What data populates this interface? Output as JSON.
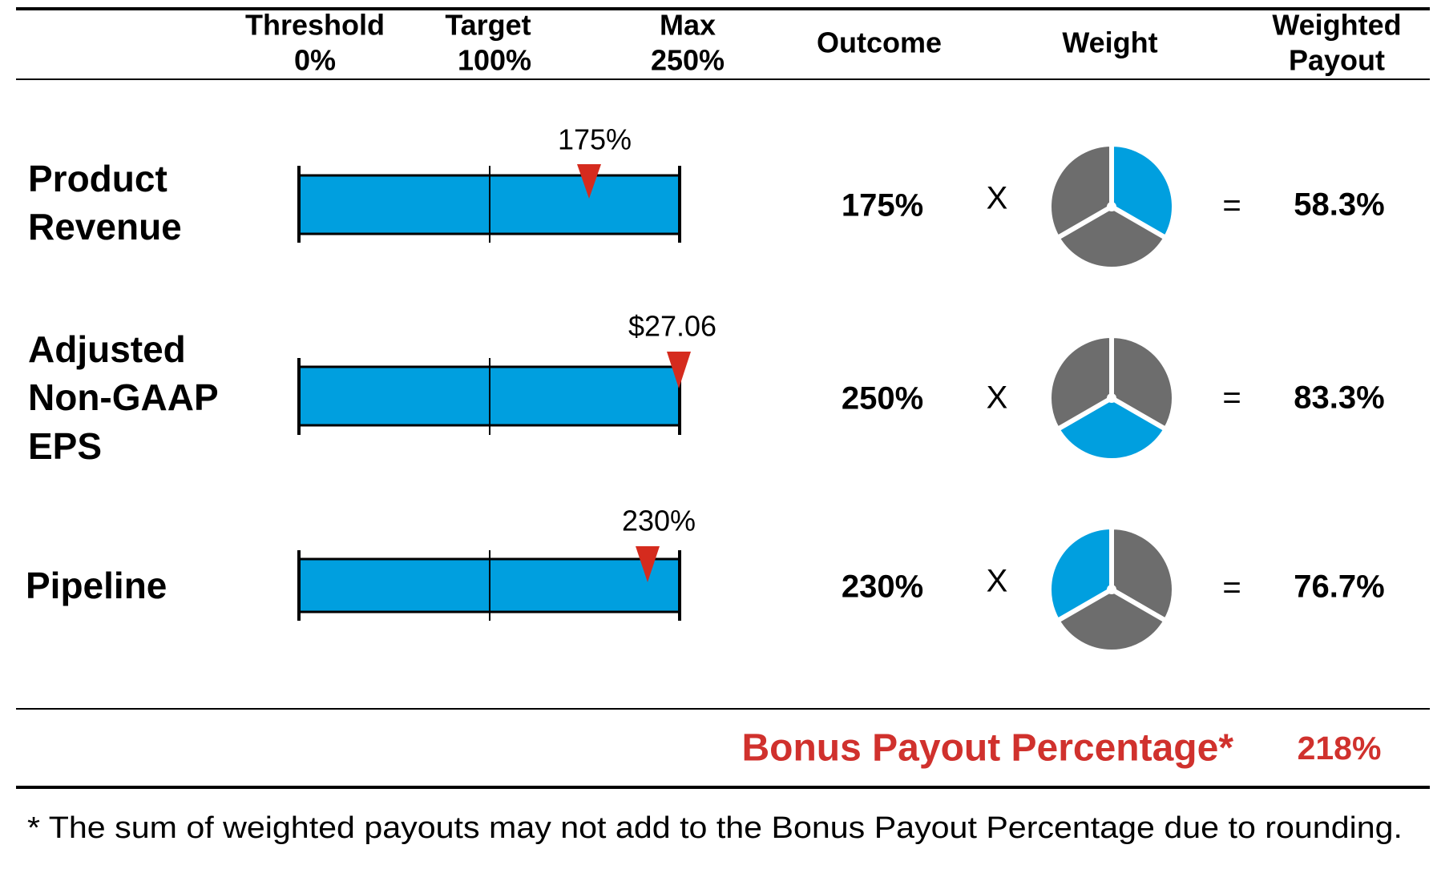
{
  "header": {
    "threshold": {
      "label": "Threshold",
      "value": "0%"
    },
    "target": {
      "label": "Target",
      "value": "100%"
    },
    "max": {
      "label": "Max",
      "value": "250%"
    },
    "outcome": "Outcome",
    "weight": "Weight",
    "weighted_payout": [
      "Weighted",
      "Payout"
    ]
  },
  "rows": [
    {
      "name": [
        "Product",
        "Revenue"
      ],
      "marker_label": "175%",
      "outcome": "175%",
      "operator": "X",
      "equals": "=",
      "weighted_payout": "58.3%"
    },
    {
      "name": [
        "Adjusted",
        "Non-GAAP",
        "EPS"
      ],
      "marker_label": "$27.06",
      "outcome": "250%",
      "operator": "X",
      "equals": "=",
      "weighted_payout": "83.3%"
    },
    {
      "name": [
        "Pipeline"
      ],
      "marker_label": "230%",
      "outcome": "230%",
      "operator": "X",
      "equals": "=",
      "weighted_payout": "76.7%"
    }
  ],
  "total": {
    "label": "Bonus Payout Percentage*",
    "value": "218%"
  },
  "footnote": "* The sum of weighted payouts may not add to the Bonus Payout Percentage due to rounding."
}
